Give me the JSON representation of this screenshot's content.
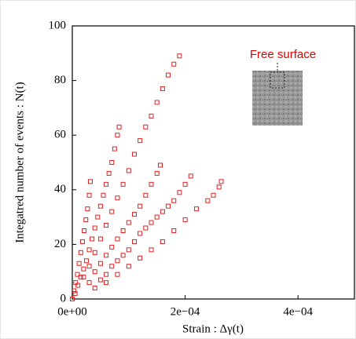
{
  "chart_data": {
    "type": "scatter",
    "x_label": "Strain : Δγ(t)",
    "y_label": "Integatred number of events : N(t)",
    "annotation": "Free surface",
    "xlim": [
      0,
      0.0005
    ],
    "ylim": [
      0,
      100
    ],
    "xticks": [
      {
        "value": 0,
        "label": "0e+00"
      },
      {
        "value": 0.0002,
        "label": "2e−04"
      },
      {
        "value": 0.0004,
        "label": "4e−04"
      }
    ],
    "yticks": [
      0,
      20,
      40,
      60,
      80,
      100
    ],
    "marker_color": "#e02020",
    "series": [
      {
        "x": [
          0,
          3e-06,
          6e-06,
          9e-06,
          1.2e-05,
          1.5e-05,
          1.8e-05,
          2.1e-05,
          2.4e-05,
          2.7e-05,
          3e-05,
          3.2e-05
        ],
        "values": [
          0,
          3,
          6,
          9,
          13,
          17,
          21,
          25,
          29,
          33,
          38,
          43
        ]
      },
      {
        "x": [
          5e-06,
          1e-05,
          1.5e-05,
          2e-05,
          2.5e-05,
          3e-05,
          3.5e-05,
          4e-05,
          4.5e-05,
          5e-05,
          5.5e-05,
          6e-05,
          6.5e-05,
          7e-05,
          7.5e-05,
          8e-05,
          8.3e-05
        ],
        "values": [
          2,
          5,
          8,
          11,
          14,
          18,
          22,
          26,
          30,
          34,
          38,
          42,
          46,
          50,
          55,
          60,
          63
        ]
      },
      {
        "x": [
          2e-05,
          3e-05,
          4e-05,
          5e-05,
          6e-05,
          7e-05,
          8e-05,
          9e-05,
          0.0001,
          0.00011,
          0.00012,
          0.00013,
          0.00014,
          0.00015,
          0.00016,
          0.00017,
          0.00018,
          0.00019
        ],
        "values": [
          8,
          12,
          17,
          22,
          27,
          32,
          37,
          42,
          47,
          53,
          58,
          63,
          67,
          72,
          77,
          82,
          86,
          89
        ]
      },
      {
        "x": [
          3e-05,
          4e-05,
          5e-05,
          6e-05,
          7e-05,
          8e-05,
          9e-05,
          0.0001,
          0.00011,
          0.00012,
          0.00013,
          0.00014,
          0.00015,
          0.000156
        ],
        "values": [
          6,
          10,
          13,
          16,
          19,
          22,
          25,
          28,
          31,
          34,
          38,
          42,
          46,
          49
        ]
      },
      {
        "x": [
          4e-05,
          5e-05,
          6e-05,
          7e-05,
          8e-05,
          9e-05,
          0.0001,
          0.00011,
          0.00012,
          0.00013,
          0.00014,
          0.00015,
          0.00016,
          0.00017,
          0.00018,
          0.00019,
          0.0002,
          0.00021
        ],
        "values": [
          4,
          7,
          9,
          12,
          14,
          16,
          18,
          21,
          24,
          26,
          28,
          30,
          32,
          34,
          36,
          39,
          42,
          45
        ]
      },
      {
        "x": [
          6e-05,
          8e-05,
          0.0001,
          0.00012,
          0.00014,
          0.00016,
          0.00018,
          0.0002,
          0.00022,
          0.00024,
          0.00025,
          0.00026,
          0.000264
        ],
        "values": [
          6,
          9,
          12,
          15,
          18,
          21,
          25,
          29,
          33,
          36,
          38,
          41,
          43
        ]
      }
    ]
  }
}
